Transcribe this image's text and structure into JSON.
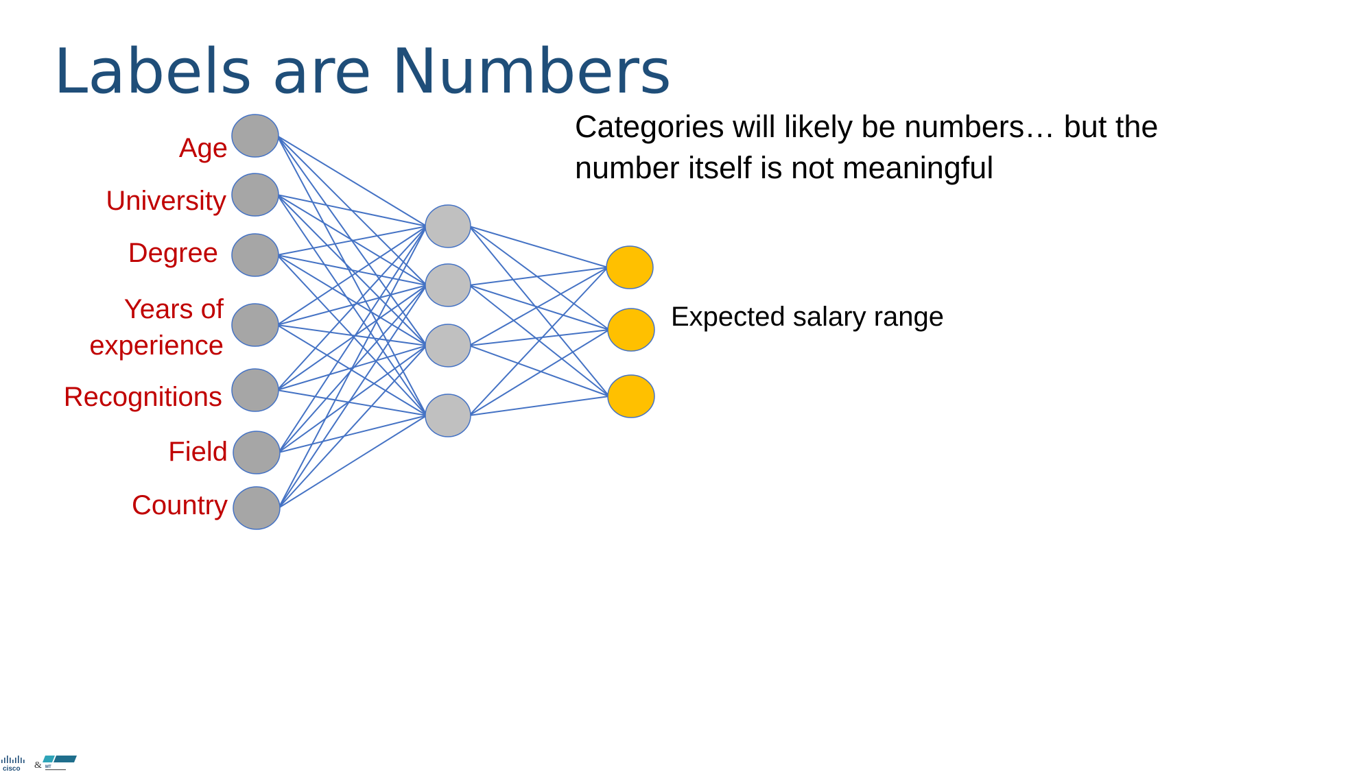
{
  "slide": {
    "title": "Labels are Numbers",
    "note": "Categories will likely be numbers… but the number itself is not meaningful",
    "output_label": "Expected salary range",
    "input_labels": [
      "Age",
      "University",
      "Degree",
      "Years of experience",
      "Recognitions",
      "Field",
      "Country"
    ]
  },
  "network": {
    "layers": [
      7,
      4,
      3
    ],
    "colors": {
      "input_node": "#a6a6a6",
      "hidden_node": "#c0c0c0",
      "output_node": "#ffc000",
      "node_stroke": "#4472c4",
      "edge": "#4472c4",
      "label": "#c00000",
      "title": "#1f4e79"
    }
  },
  "logos": {
    "left": "cisco",
    "separator": "&",
    "right": "MT"
  }
}
